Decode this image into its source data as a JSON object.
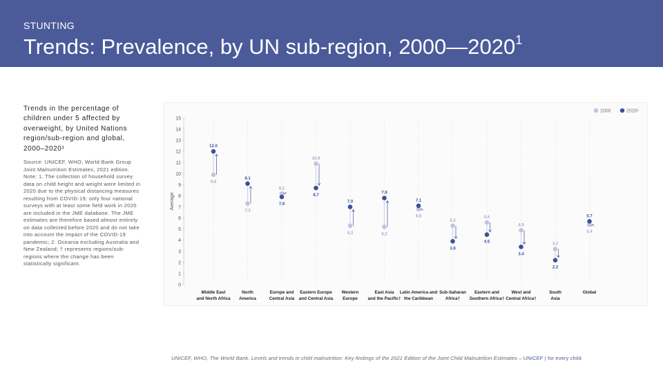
{
  "header": {
    "kicker": "STUNTING",
    "title": "Trends: Prevalence, by UN sub-region, 2000—2020",
    "title_sup": "1"
  },
  "description": "Trends in the percentage of children under 5 affected by overweight, by United Nations region/sub-region and global, 2000–2020¹",
  "source_note": "Source: UNICEF, WHO, World Bank Group Joint Malnutrition Estimates, 2021 edition. Note: 1. The collection of household survey data on child height and weight were limited in 2020 due to the physical distancing measures resulting from COVID-19; only four national surveys with at least some field work in 2020 are included in the JME database. The JME estimates are therefore based almost entirely on data collected before 2020 and do not take into account the impact of the COVID-19 pandemic; 2. Oceania excluding Australia and New Zealand; † represents regions/sub-regions where the change has been statistically significant.",
  "footer": {
    "citation": "UNICEF, WHO, The World Bank. Levels and trends in child malnutrition: Key findings of the 2021 Edition of the Joint Child Malnutrition Estimates – ",
    "brand": "UNICEF | for every child"
  },
  "colors": {
    "header_bg": "#4b5a99",
    "series_2000": "#c4c2e0",
    "series_2020": "#3f4f9a",
    "arrow": "#e06060"
  },
  "chart_data": {
    "type": "scatter",
    "ylabel": "Average",
    "ylim": [
      0,
      15
    ],
    "yticks": [
      0,
      1,
      2,
      3,
      4,
      5,
      6,
      7,
      8,
      9,
      10,
      11,
      12,
      13,
      14,
      15
    ],
    "grid": false,
    "legend_position": "top-right",
    "categories": [
      [
        "Middle East",
        "and North Africa"
      ],
      [
        "North",
        "America"
      ],
      [
        "Europe and",
        "Central Asia"
      ],
      [
        "Eastern Europe",
        "and Central Asia"
      ],
      [
        "Western",
        "Europe"
      ],
      [
        "East Asia",
        "and the Pacific†"
      ],
      [
        "Latin America and",
        "the Caribbean"
      ],
      [
        "Sub-Saharan",
        "Africa†"
      ],
      [
        "Eastern and",
        "Southern Africa†"
      ],
      [
        "West and",
        "Central Africa†"
      ],
      [
        "South",
        "Asia"
      ],
      [
        "Global",
        ""
      ]
    ],
    "series": [
      {
        "name": "2000",
        "values": [
          9.9,
          7.3,
          8.2,
          10.9,
          5.3,
          5.2,
          6.8,
          5.3,
          5.6,
          4.9,
          3.2,
          5.4
        ]
      },
      {
        "name": "2020¹",
        "values": [
          12.0,
          9.1,
          7.9,
          8.7,
          7.0,
          7.8,
          7.1,
          3.9,
          4.5,
          3.4,
          2.2,
          5.7
        ]
      }
    ],
    "labels_2000": [
      "9.9",
      "7.3",
      "8.2",
      "10.9",
      "5.3",
      "5.2",
      "6.8",
      "5.3",
      "5.6",
      "4.9",
      "3.2",
      "5.4"
    ],
    "labels_2020": [
      "12.0",
      "9.1",
      "7.9",
      "8.7",
      "7.0",
      "7.8",
      "7.1",
      "3.9",
      "4.5",
      "3.4",
      "2.2",
      "5.7"
    ],
    "significant_change": [
      true,
      true,
      true,
      true,
      true,
      true,
      true,
      true,
      true,
      true,
      true,
      true
    ]
  }
}
